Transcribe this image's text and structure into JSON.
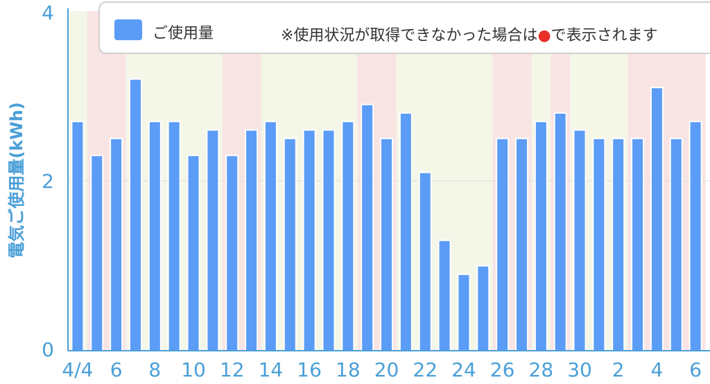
{
  "chart_data": {
    "type": "bar",
    "ylabel": "電気ご使用量(kWh)",
    "ylim": [
      0,
      4
    ],
    "y_ticks": [
      "0",
      "2",
      "4"
    ],
    "grid": true,
    "legend_position": "top",
    "series": [
      {
        "name": "ご使用量",
        "color": "#5b9cf6",
        "values": [
          2.7,
          2.3,
          2.5,
          3.2,
          2.7,
          2.7,
          2.3,
          2.6,
          2.3,
          2.6,
          2.7,
          2.5,
          2.6,
          2.6,
          2.7,
          2.9,
          2.5,
          2.8,
          2.1,
          1.3,
          0.9,
          1.0,
          2.5,
          2.5,
          2.7,
          2.8,
          2.6,
          2.5,
          2.5,
          2.5,
          3.1,
          2.5,
          2.7
        ]
      }
    ],
    "x_tick_labels": [
      "4/4",
      "6",
      "8",
      "10",
      "12",
      "14",
      "16",
      "18",
      "20",
      "22",
      "24",
      "26",
      "28",
      "30",
      "2",
      "4",
      "6"
    ],
    "day_background": [
      "weekday",
      "weekend",
      "weekend",
      "weekday",
      "weekday",
      "weekday",
      "weekday",
      "weekday",
      "weekend",
      "weekend",
      "weekday",
      "weekday",
      "weekday",
      "weekday",
      "weekday",
      "weekend",
      "weekend",
      "weekday",
      "weekday",
      "weekday",
      "weekday",
      "weekday",
      "weekend",
      "weekend",
      "weekday",
      "weekend",
      "weekday",
      "weekday",
      "weekday",
      "weekend",
      "weekend",
      "weekend",
      "weekend"
    ],
    "background_colors": {
      "weekday": "#f4f6e8",
      "weekend": "#f9e4e4"
    },
    "legend": {
      "label": "ご使用量",
      "note_before": "※使用状況が取得できなかった場合は",
      "note_marker_color": "#e8302a",
      "note_after": "で表示されます"
    }
  }
}
